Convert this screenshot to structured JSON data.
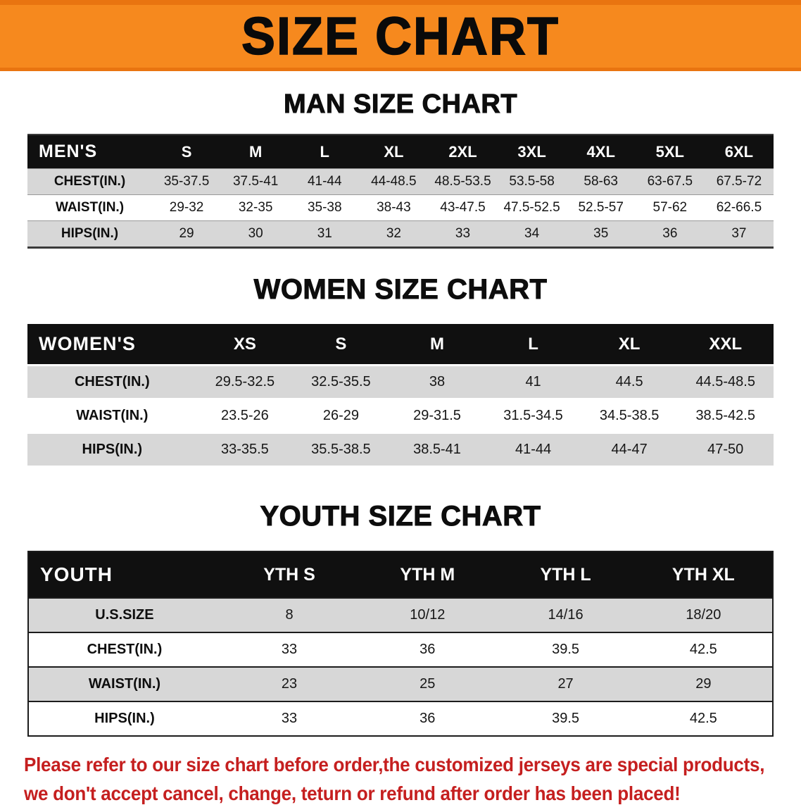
{
  "banner": {
    "title": "SIZE CHART"
  },
  "colors": {
    "banner_orange": "#f6891e",
    "banner_edge": "#e97410",
    "table_header_black": "#101010",
    "row_stripe_gray": "#d7d7d7",
    "disclaimer_red": "#c51f1f"
  },
  "sections": [
    {
      "heading": "MAN SIZE CHART",
      "table": {
        "header": [
          "MEN'S",
          "S",
          "M",
          "L",
          "XL",
          "2XL",
          "3XL",
          "4XL",
          "5XL",
          "6XL"
        ],
        "rows": [
          [
            "CHEST(IN.)",
            "35-37.5",
            "37.5-41",
            "41-44",
            "44-48.5",
            "48.5-53.5",
            "53.5-58",
            "58-63",
            "63-67.5",
            "67.5-72"
          ],
          [
            "WAIST(IN.)",
            "29-32",
            "32-35",
            "35-38",
            "38-43",
            "43-47.5",
            "47.5-52.5",
            "52.5-57",
            "57-62",
            "62-66.5"
          ],
          [
            "HIPS(IN.)",
            "29",
            "30",
            "31",
            "32",
            "33",
            "34",
            "35",
            "36",
            "37"
          ]
        ]
      }
    },
    {
      "heading": "WOMEN SIZE CHART",
      "table": {
        "header": [
          "WOMEN'S",
          "XS",
          "S",
          "M",
          "L",
          "XL",
          "XXL"
        ],
        "rows": [
          [
            "CHEST(IN.)",
            "29.5-32.5",
            "32.5-35.5",
            "38",
            "41",
            "44.5",
            "44.5-48.5"
          ],
          [
            "WAIST(IN.)",
            "23.5-26",
            "26-29",
            "29-31.5",
            "31.5-34.5",
            "34.5-38.5",
            "38.5-42.5"
          ],
          [
            "HIPS(IN.)",
            "33-35.5",
            "35.5-38.5",
            "38.5-41",
            "41-44",
            "44-47",
            "47-50"
          ]
        ]
      }
    },
    {
      "heading": "YOUTH SIZE CHART",
      "table": {
        "header": [
          "YOUTH",
          "YTH S",
          "YTH M",
          "YTH L",
          "YTH XL"
        ],
        "rows": [
          [
            "U.S.SIZE",
            "8",
            "10/12",
            "14/16",
            "18/20"
          ],
          [
            "CHEST(IN.)",
            "33",
            "36",
            "39.5",
            "42.5"
          ],
          [
            "WAIST(IN.)",
            "23",
            "25",
            "27",
            "29"
          ],
          [
            "HIPS(IN.)",
            "33",
            "36",
            "39.5",
            "42.5"
          ]
        ]
      }
    }
  ],
  "footer": {
    "line1": "Please refer to our size chart before order,the customized jerseys are special products,",
    "line2": "we don't accept cancel, change, teturn or refund after order has been placed!"
  }
}
